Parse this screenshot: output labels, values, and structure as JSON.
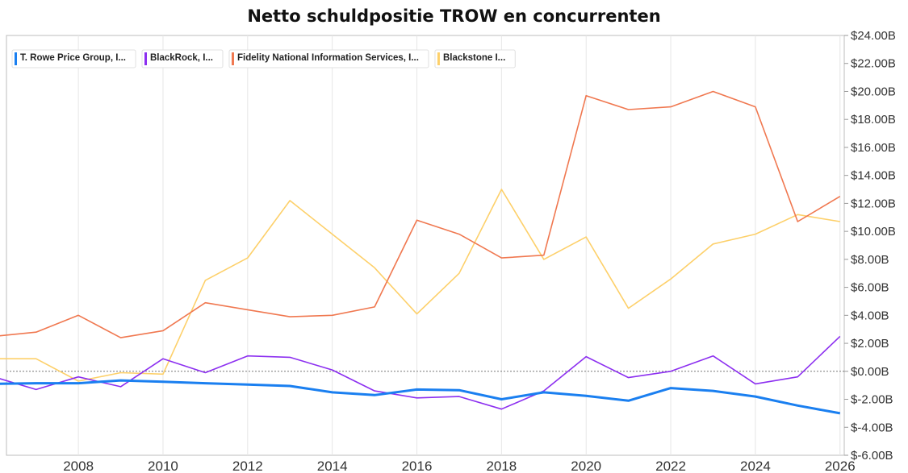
{
  "chart_data": {
    "type": "line",
    "title": "Netto schuldpositie TROW en concurrenten",
    "xlabel": "",
    "ylabel": "",
    "x": [
      2006,
      2007,
      2008,
      2009,
      2010,
      2011,
      2012,
      2013,
      2014,
      2015,
      2016,
      2017,
      2018,
      2019,
      2020,
      2021,
      2022,
      2023,
      2024,
      2025,
      2026
    ],
    "xlim": [
      2006.3,
      2026.1
    ],
    "ylim": [
      -6,
      24
    ],
    "x_ticks": [
      {
        "value": 2008,
        "label": "2008"
      },
      {
        "value": 2010,
        "label": "2010"
      },
      {
        "value": 2012,
        "label": "2012"
      },
      {
        "value": 2014,
        "label": "2014"
      },
      {
        "value": 2016,
        "label": "2016"
      },
      {
        "value": 2018,
        "label": "2018"
      },
      {
        "value": 2020,
        "label": "2020"
      },
      {
        "value": 2022,
        "label": "2022"
      },
      {
        "value": 2024,
        "label": "2024"
      },
      {
        "value": 2026,
        "label": "2026"
      }
    ],
    "y_ticks": [
      {
        "value": 24,
        "label": "$24.00B"
      },
      {
        "value": 22,
        "label": "$22.00B"
      },
      {
        "value": 20,
        "label": "$20.00B"
      },
      {
        "value": 18,
        "label": "$18.00B"
      },
      {
        "value": 16,
        "label": "$16.00B"
      },
      {
        "value": 14,
        "label": "$14.00B"
      },
      {
        "value": 12,
        "label": "$12.00B"
      },
      {
        "value": 10,
        "label": "$10.00B"
      },
      {
        "value": 8,
        "label": "$8.00B"
      },
      {
        "value": 6,
        "label": "$6.00B"
      },
      {
        "value": 4,
        "label": "$4.00B"
      },
      {
        "value": 2,
        "label": "$2.00B"
      },
      {
        "value": 0,
        "label": "$0.00B"
      },
      {
        "value": -2,
        "label": "$-2.00B"
      },
      {
        "value": -4,
        "label": "$-4.00B"
      },
      {
        "value": -6,
        "label": "$-6.00B"
      }
    ],
    "grid": true,
    "zero_line": "dotted",
    "legend": "top-left",
    "series": [
      {
        "name": "T. Rowe Price Group, I...",
        "color": "#1a7ff0",
        "values": [
          -0.9,
          -0.85,
          -0.85,
          -0.65,
          -0.75,
          -0.85,
          -0.95,
          -1.05,
          -1.5,
          -1.7,
          -1.3,
          -1.35,
          -2.0,
          -1.5,
          -1.75,
          -2.1,
          -1.2,
          -1.4,
          -1.8,
          -2.45,
          -3.0
        ]
      },
      {
        "name": "BlackRock, I...",
        "color": "#8c2ff0",
        "values": [
          -0.4,
          -1.3,
          -0.4,
          -1.1,
          0.9,
          -0.1,
          1.1,
          1.0,
          0.1,
          -1.4,
          -1.9,
          -1.8,
          -2.7,
          -1.4,
          1.05,
          -0.45,
          0.0,
          1.1,
          -0.9,
          -0.4,
          2.5
        ]
      },
      {
        "name": "Fidelity National Information Services, I...",
        "color": "#f07850",
        "values": [
          2.5,
          2.8,
          4.0,
          2.4,
          2.9,
          4.9,
          4.4,
          3.9,
          4.0,
          4.6,
          10.8,
          9.8,
          8.1,
          8.3,
          19.7,
          18.7,
          18.9,
          20.0,
          18.9,
          10.7,
          12.5
        ]
      },
      {
        "name": "Blackstone I...",
        "color": "#fdd06a",
        "values": [
          0.9,
          0.9,
          -0.7,
          -0.1,
          -0.2,
          6.5,
          8.1,
          12.2,
          9.8,
          7.4,
          4.1,
          7.0,
          13.0,
          8.0,
          9.6,
          4.5,
          6.6,
          9.1,
          9.8,
          11.2,
          10.7
        ]
      }
    ]
  }
}
